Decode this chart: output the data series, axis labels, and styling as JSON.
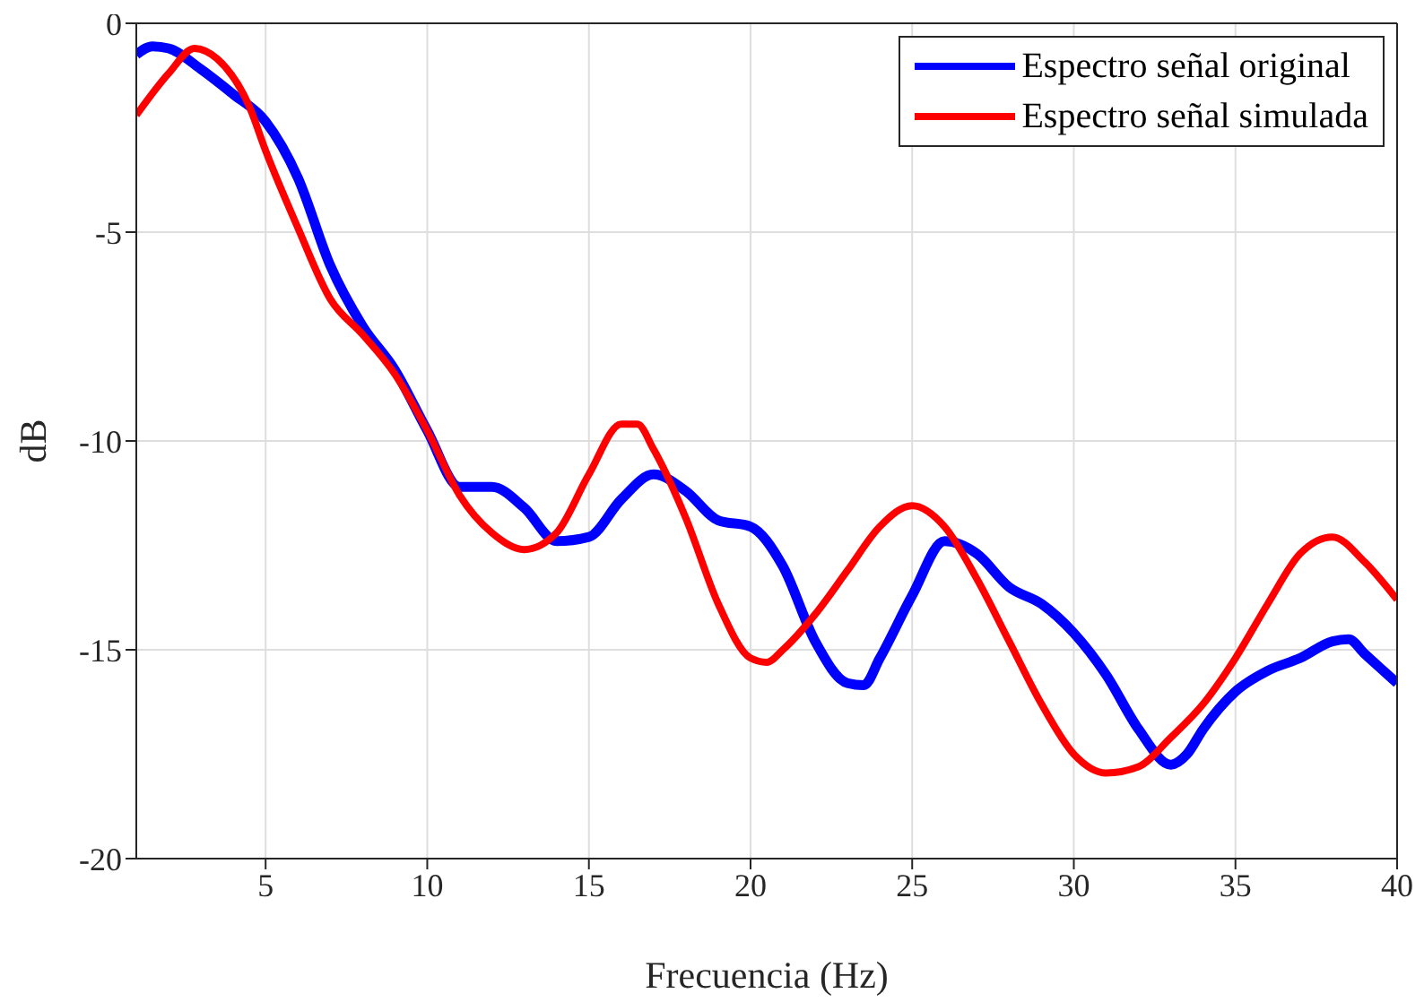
{
  "chart_data": {
    "type": "line",
    "xlabel": "Frecuencia (Hz)",
    "ylabel": "dB",
    "xlim": [
      1,
      40
    ],
    "xticks": [
      5,
      10,
      15,
      20,
      25,
      30,
      35,
      40
    ],
    "ylim": [
      -20,
      0
    ],
    "yticks": [
      -20,
      -15,
      -10,
      -5,
      0
    ],
    "grid": true,
    "legend": "top right",
    "marker": "none",
    "line_style": "solid",
    "series": [
      {
        "name": "Espectro señal original",
        "color": "#0000ff",
        "x": [
          1,
          1.5,
          2,
          3,
          4,
          5,
          6,
          7,
          8,
          9,
          10,
          11,
          12,
          13,
          14,
          15,
          16,
          17,
          18,
          19,
          20,
          21,
          22,
          23,
          23.5,
          24,
          25,
          26,
          27,
          28,
          29,
          30,
          31,
          32,
          33,
          33.5,
          34,
          35,
          36,
          37,
          38,
          38.5,
          39,
          40
        ],
        "values": [
          -0.75,
          -0.55,
          -0.6,
          -1.1,
          -1.7,
          -2.35,
          -3.7,
          -5.8,
          -7.25,
          -8.3,
          -9.75,
          -11.1,
          -11.1,
          -11.6,
          -12.4,
          -12.3,
          -11.4,
          -10.8,
          -11.2,
          -11.9,
          -12.05,
          -13.0,
          -14.8,
          -15.8,
          -15.85,
          -15.2,
          -13.7,
          -12.4,
          -12.7,
          -13.5,
          -13.9,
          -14.6,
          -15.6,
          -16.9,
          -17.75,
          -17.5,
          -16.9,
          -16.0,
          -15.5,
          -15.2,
          -14.8,
          -14.75,
          -15.1,
          -15.8
        ]
      },
      {
        "name": "Espectro señal simulada",
        "color": "#ff0000",
        "x": [
          1,
          2,
          2.8,
          3.5,
          4.5,
          5,
          6,
          7,
          8,
          9,
          10,
          11,
          12,
          13,
          14,
          15,
          16,
          16.5,
          17,
          18,
          19,
          20,
          20.5,
          21,
          22,
          23,
          24,
          25,
          26,
          27,
          28,
          29,
          30,
          31,
          32,
          33,
          34,
          35,
          36,
          37,
          38,
          39,
          40
        ],
        "values": [
          -2.2,
          -1.2,
          -0.6,
          -0.85,
          -2.0,
          -3.05,
          -4.9,
          -6.6,
          -7.45,
          -8.4,
          -9.75,
          -11.3,
          -12.2,
          -12.6,
          -12.2,
          -10.8,
          -9.6,
          -9.6,
          -10.2,
          -11.85,
          -13.9,
          -15.2,
          -15.3,
          -15.0,
          -14.15,
          -13.1,
          -12.05,
          -11.55,
          -12.05,
          -13.3,
          -14.8,
          -16.3,
          -17.5,
          -17.95,
          -17.8,
          -17.1,
          -16.3,
          -15.2,
          -13.9,
          -12.7,
          -12.3,
          -12.9,
          -13.8
        ]
      }
    ]
  }
}
